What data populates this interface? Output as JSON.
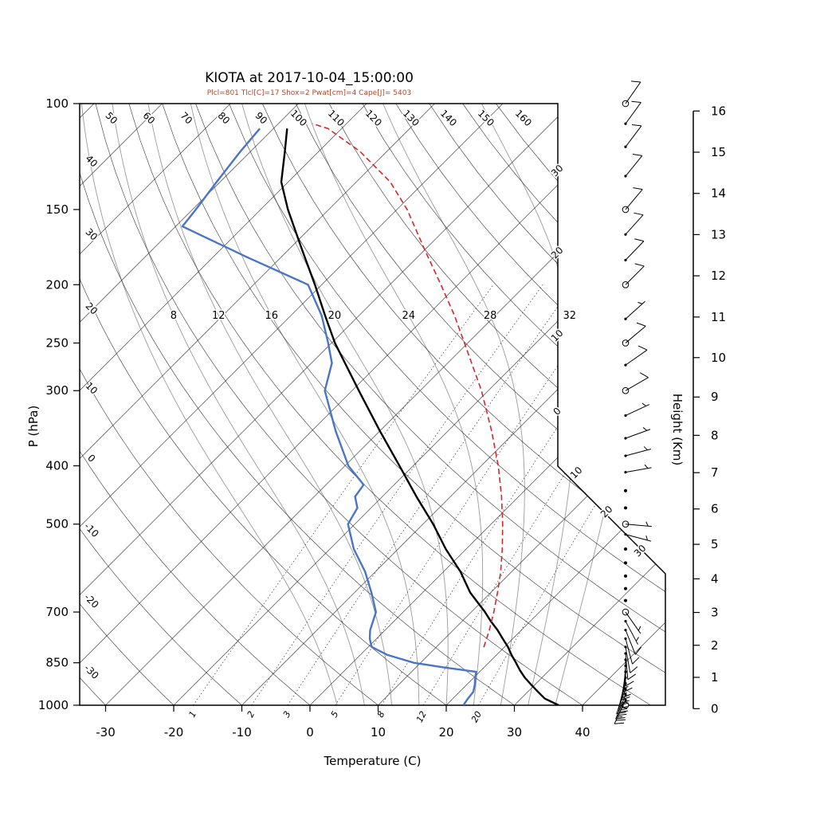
{
  "title": "KIOTA at 2017-10-04_15:00:00",
  "subtitle": "Plcl=801 Tlcl[C]=17 Shox=2 Pwat[cm]=4 Cape[J]= 5403",
  "axes": {
    "pressure": {
      "label": "P (hPa)",
      "ticks": [
        100,
        150,
        200,
        250,
        300,
        400,
        500,
        700,
        850,
        1000
      ]
    },
    "temperature": {
      "label": "Temperature (C)",
      "ticks": [
        -30,
        -20,
        -10,
        0,
        10,
        20,
        30,
        40
      ]
    },
    "height": {
      "label": "Height (Km)",
      "ticks": [
        0,
        1,
        2,
        3,
        4,
        5,
        6,
        7,
        8,
        9,
        10,
        11,
        12,
        13,
        14,
        15,
        16
      ]
    }
  },
  "colors": {
    "temperature": "#000000",
    "dewpoint": "#4a74c9",
    "parcel": "#d62728",
    "subtitle": "#b3472b",
    "grid": "#2b2b2b",
    "moist": "#9a9a9a",
    "mixing": "#333333"
  },
  "chart_data": {
    "type": "skewt-log-p",
    "plot": {
      "pressure_range_hPa": [
        100,
        1000
      ],
      "temperature_ticks_c": [
        -30,
        -20,
        -10,
        0,
        10,
        20,
        30,
        40
      ],
      "skew_deg": 45,
      "grid": true
    },
    "background": {
      "isotherms": {
        "start": -120,
        "end": 40,
        "step": 10,
        "edge_labels": [
          "30",
          "20",
          "10",
          "0",
          "10",
          "20",
          "30"
        ]
      },
      "dry_adiabats": {
        "start": -30,
        "end": 160,
        "step": 10,
        "top_labels": [
          50,
          60,
          70,
          80,
          90,
          100,
          110,
          120,
          130,
          140,
          150,
          160
        ],
        "left_labels": [
          40,
          30,
          20,
          10,
          0,
          -10,
          -20,
          -30
        ]
      },
      "moist_adiabats": {
        "labeled_values": [
          8,
          12,
          16,
          20,
          24,
          28,
          32
        ],
        "extra_values": [
          4,
          36
        ],
        "label_pressure_hPa": 225
      },
      "mixing_ratio_g_kg": [
        1,
        2,
        3,
        5,
        8,
        12,
        20
      ]
    },
    "series": [
      {
        "name": "temperature",
        "style": "solid",
        "points": [
          [
            1000,
            36.5
          ],
          [
            975,
            33.5
          ],
          [
            950,
            31.5
          ],
          [
            925,
            29.5
          ],
          [
            900,
            27.5
          ],
          [
            875,
            25.7
          ],
          [
            850,
            24.0
          ],
          [
            825,
            22.2
          ],
          [
            800,
            20.5
          ],
          [
            775,
            18.5
          ],
          [
            750,
            16.5
          ],
          [
            725,
            14.2
          ],
          [
            700,
            12.0
          ],
          [
            650,
            7.0
          ],
          [
            600,
            2.5
          ],
          [
            550,
            -3.0
          ],
          [
            500,
            -8.5
          ],
          [
            450,
            -15.0
          ],
          [
            400,
            -22.0
          ],
          [
            350,
            -30.0
          ],
          [
            300,
            -39.0
          ],
          [
            250,
            -49.5
          ],
          [
            225,
            -55.0
          ],
          [
            200,
            -61.0
          ],
          [
            175,
            -68.0
          ],
          [
            150,
            -76.0
          ],
          [
            135,
            -81.0
          ],
          [
            120,
            -85.0
          ],
          [
            110,
            -88.0
          ]
        ]
      },
      {
        "name": "dewpoint",
        "style": "solid",
        "points": [
          [
            1000,
            22.5
          ],
          [
            975,
            22.2
          ],
          [
            950,
            22.0
          ],
          [
            925,
            21.2
          ],
          [
            900,
            20.2
          ],
          [
            880,
            19.5
          ],
          [
            865,
            14.0
          ],
          [
            850,
            9.0
          ],
          [
            825,
            4.0
          ],
          [
            800,
            0.5
          ],
          [
            775,
            -1.0
          ],
          [
            750,
            -2.2
          ],
          [
            700,
            -4.0
          ],
          [
            650,
            -7.5
          ],
          [
            600,
            -11.5
          ],
          [
            550,
            -16.5
          ],
          [
            500,
            -21.0
          ],
          [
            470,
            -22.0
          ],
          [
            450,
            -24.0
          ],
          [
            430,
            -24.5
          ],
          [
            400,
            -29.5
          ],
          [
            350,
            -36.5
          ],
          [
            300,
            -44.0
          ],
          [
            270,
            -47.0
          ],
          [
            250,
            -50.5
          ],
          [
            225,
            -55.5
          ],
          [
            200,
            -62.0
          ],
          [
            180,
            -75.0
          ],
          [
            160,
            -89.0
          ],
          [
            150,
            -89.5
          ],
          [
            135,
            -90.5
          ],
          [
            120,
            -91.5
          ],
          [
            110,
            -92.0
          ]
        ]
      },
      {
        "name": "parcel",
        "style": "dashed",
        "points": [
          [
            801,
            17.0
          ],
          [
            750,
            15.3
          ],
          [
            700,
            13.3
          ],
          [
            650,
            11.0
          ],
          [
            600,
            8.4
          ],
          [
            550,
            5.3
          ],
          [
            500,
            1.7
          ],
          [
            450,
            -2.5
          ],
          [
            400,
            -7.5
          ],
          [
            350,
            -13.6
          ],
          [
            300,
            -21.0
          ],
          [
            250,
            -30.5
          ],
          [
            225,
            -36.0
          ],
          [
            200,
            -42.5
          ],
          [
            175,
            -50.0
          ],
          [
            150,
            -58.5
          ],
          [
            135,
            -65.0
          ],
          [
            120,
            -74.0
          ],
          [
            110,
            -82.0
          ],
          [
            108,
            -85.0
          ]
        ]
      }
    ],
    "wind_barbs_kt": [
      [
        1000,
        2,
        0,
        "circle"
      ],
      [
        980,
        25,
        205,
        ""
      ],
      [
        960,
        28,
        202,
        ""
      ],
      [
        940,
        25,
        200,
        ""
      ],
      [
        920,
        22,
        196,
        ""
      ],
      [
        900,
        20,
        192,
        ""
      ],
      [
        880,
        15,
        188,
        ""
      ],
      [
        860,
        15,
        184,
        ""
      ],
      [
        840,
        12,
        180,
        ""
      ],
      [
        820,
        10,
        175,
        ""
      ],
      [
        800,
        8,
        170,
        ""
      ],
      [
        775,
        10,
        165,
        ""
      ],
      [
        750,
        8,
        158,
        ""
      ],
      [
        725,
        5,
        152,
        ""
      ],
      [
        700,
        5,
        145,
        "circle"
      ],
      [
        670,
        2,
        0,
        "dot"
      ],
      [
        640,
        2,
        0,
        "dot"
      ],
      [
        610,
        2,
        0,
        "dot"
      ],
      [
        580,
        2,
        0,
        "dot"
      ],
      [
        550,
        2,
        0,
        "dot"
      ],
      [
        520,
        4,
        105,
        ""
      ],
      [
        500,
        5,
        95,
        "circle"
      ],
      [
        470,
        2,
        0,
        "dot"
      ],
      [
        440,
        2,
        0,
        "dot"
      ],
      [
        410,
        4,
        80,
        ""
      ],
      [
        385,
        5,
        75,
        ""
      ],
      [
        360,
        4,
        70,
        ""
      ],
      [
        330,
        5,
        65,
        ""
      ],
      [
        300,
        8,
        60,
        "circle"
      ],
      [
        272,
        8,
        55,
        ""
      ],
      [
        250,
        10,
        50,
        "circle"
      ],
      [
        228,
        5,
        48,
        ""
      ],
      [
        200,
        8,
        45,
        "circle"
      ],
      [
        182,
        10,
        44,
        ""
      ],
      [
        165,
        8,
        42,
        ""
      ],
      [
        150,
        12,
        40,
        "circle"
      ],
      [
        132,
        10,
        39,
        ""
      ],
      [
        118,
        10,
        37,
        ""
      ],
      [
        108,
        8,
        36,
        ""
      ],
      [
        100,
        8,
        35,
        "circle"
      ]
    ]
  }
}
